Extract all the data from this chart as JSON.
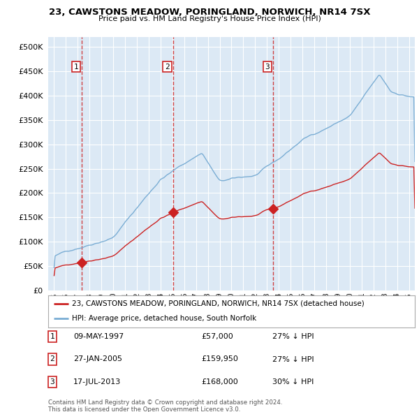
{
  "title": "23, CAWSTONS MEADOW, PORINGLAND, NORWICH, NR14 7SX",
  "subtitle": "Price paid vs. HM Land Registry's House Price Index (HPI)",
  "hpi_label": "HPI: Average price, detached house, South Norfolk",
  "price_label": "23, CAWSTONS MEADOW, PORINGLAND, NORWICH, NR14 7SX (detached house)",
  "hpi_color": "#7aadd4",
  "price_color": "#cc2222",
  "vline_color": "#cc2222",
  "yticks": [
    0,
    50000,
    100000,
    150000,
    200000,
    250000,
    300000,
    350000,
    400000,
    450000,
    500000
  ],
  "ytick_labels": [
    "£0",
    "£50K",
    "£100K",
    "£150K",
    "£200K",
    "£250K",
    "£300K",
    "£350K",
    "£400K",
    "£450K",
    "£500K"
  ],
  "transactions": [
    {
      "label": "1",
      "date": "09-MAY-1997",
      "price": 57000,
      "year": 1997.36,
      "hpi_pct": "27% ↓ HPI"
    },
    {
      "label": "2",
      "date": "27-JAN-2005",
      "price": 159950,
      "year": 2005.07,
      "hpi_pct": "27% ↓ HPI"
    },
    {
      "label": "3",
      "date": "17-JUL-2013",
      "price": 168000,
      "year": 2013.54,
      "hpi_pct": "30% ↓ HPI"
    }
  ],
  "footer1": "Contains HM Land Registry data © Crown copyright and database right 2024.",
  "footer2": "This data is licensed under the Open Government Licence v3.0.",
  "xmin": 1994.5,
  "xmax": 2025.5,
  "ymin": 0,
  "ymax": 520000,
  "plot_bg": "#dce9f5",
  "background_color": "#ffffff",
  "grid_color": "#ffffff"
}
